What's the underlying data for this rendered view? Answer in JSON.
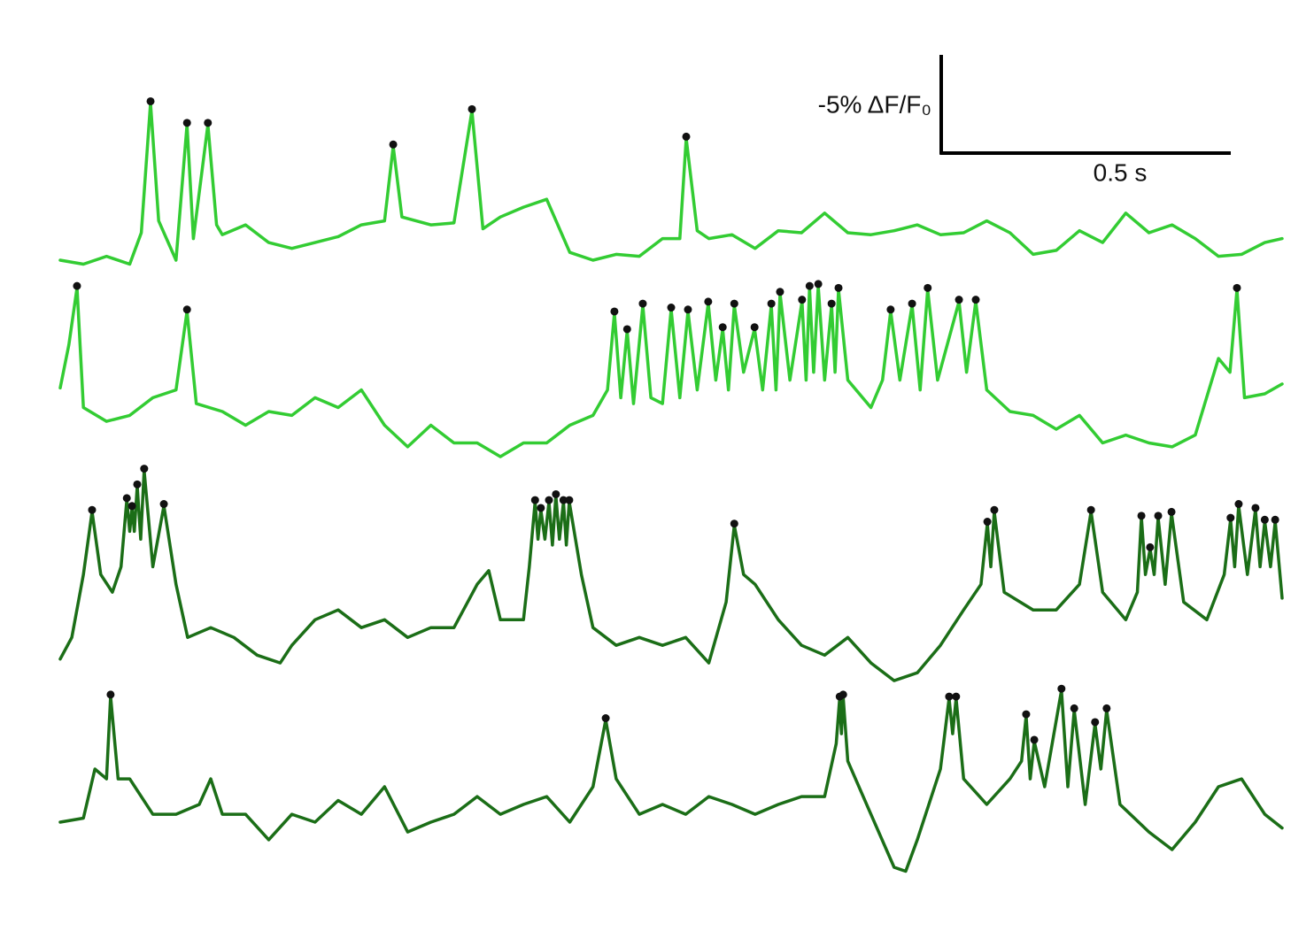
{
  "chart_data": {
    "type": "line",
    "xlim": [
      0,
      2.11
    ],
    "ylim": [
      0,
      45
    ],
    "scale_x": {
      "value": 0.5,
      "label": "0.5 s"
    },
    "scale_y": {
      "value": 5,
      "label": "-5% ΔF/F₀"
    },
    "peak_color": "#111111",
    "series": [
      {
        "color": "#33cc33",
        "x": [
          0,
          0.04,
          0.08,
          0.12,
          0.14,
          0.156,
          0.17,
          0.2,
          0.219,
          0.23,
          0.255,
          0.27,
          0.28,
          0.32,
          0.36,
          0.4,
          0.44,
          0.48,
          0.52,
          0.56,
          0.575,
          0.59,
          0.64,
          0.68,
          0.711,
          0.73,
          0.76,
          0.8,
          0.84,
          0.88,
          0.92,
          0.96,
          1.0,
          1.04,
          1.07,
          1.081,
          1.1,
          1.12,
          1.16,
          1.2,
          1.24,
          1.28,
          1.32,
          1.36,
          1.4,
          1.44,
          1.48,
          1.52,
          1.56,
          1.6,
          1.64,
          1.68,
          1.72,
          1.76,
          1.8,
          1.84,
          1.88,
          1.92,
          1.96,
          2.0,
          2.04,
          2.08,
          2.11
        ],
        "values": [
          31.8,
          31.6,
          32.0,
          31.6,
          33.2,
          39.8,
          33.8,
          31.8,
          38.7,
          32.9,
          38.7,
          33.6,
          33.1,
          33.6,
          32.7,
          32.4,
          32.7,
          33.0,
          33.6,
          33.8,
          37.6,
          34.0,
          33.6,
          33.7,
          39.4,
          33.4,
          34.0,
          34.5,
          34.9,
          32.2,
          31.8,
          32.1,
          32.0,
          32.9,
          32.9,
          38.0,
          33.3,
          32.9,
          33.1,
          32.4,
          33.3,
          33.2,
          34.2,
          33.2,
          33.1,
          33.3,
          33.6,
          33.1,
          33.2,
          33.8,
          33.2,
          32.1,
          32.3,
          33.3,
          32.7,
          34.2,
          33.2,
          33.6,
          32.9,
          32.0,
          32.1,
          32.7,
          32.9
        ],
        "peaks": {
          "x": [
            0.156,
            0.219,
            0.255,
            0.575,
            0.711,
            1.081
          ],
          "values": [
            39.8,
            38.7,
            38.7,
            37.6,
            39.4,
            38.0
          ]
        }
      },
      {
        "color": "#33cc33",
        "x": [
          0,
          0.015,
          0.029,
          0.04,
          0.08,
          0.12,
          0.16,
          0.2,
          0.219,
          0.235,
          0.28,
          0.32,
          0.36,
          0.4,
          0.44,
          0.48,
          0.52,
          0.56,
          0.6,
          0.64,
          0.68,
          0.72,
          0.76,
          0.8,
          0.84,
          0.88,
          0.92,
          0.945,
          0.957,
          0.968,
          0.979,
          0.99,
          1.006,
          1.02,
          1.04,
          1.055,
          1.07,
          1.084,
          1.1,
          1.119,
          1.132,
          1.144,
          1.154,
          1.164,
          1.18,
          1.199,
          1.213,
          1.228,
          1.236,
          1.243,
          1.26,
          1.281,
          1.288,
          1.294,
          1.301,
          1.309,
          1.32,
          1.332,
          1.338,
          1.344,
          1.36,
          1.4,
          1.42,
          1.434,
          1.45,
          1.471,
          1.485,
          1.498,
          1.515,
          1.552,
          1.565,
          1.581,
          1.6,
          1.64,
          1.68,
          1.72,
          1.76,
          1.8,
          1.84,
          1.88,
          1.92,
          1.96,
          2.0,
          2.02,
          2.032,
          2.045,
          2.08,
          2.11
        ],
        "values": [
          25.3,
          27.5,
          30.4,
          24.3,
          23.6,
          23.9,
          24.8,
          25.2,
          29.2,
          24.5,
          24.1,
          23.4,
          24.1,
          23.9,
          24.8,
          24.3,
          25.2,
          23.4,
          22.3,
          23.4,
          22.5,
          22.5,
          21.8,
          22.5,
          22.5,
          23.4,
          23.9,
          25.2,
          29.1,
          24.8,
          28.2,
          24.5,
          29.5,
          24.8,
          24.5,
          29.3,
          24.8,
          29.2,
          25.2,
          29.6,
          25.7,
          28.3,
          25.2,
          29.5,
          26.1,
          28.3,
          25.2,
          29.5,
          25.2,
          30.1,
          25.7,
          29.7,
          25.7,
          30.4,
          26.1,
          30.5,
          25.7,
          29.5,
          26.1,
          30.3,
          25.7,
          24.3,
          25.7,
          29.2,
          25.7,
          29.5,
          25.2,
          30.3,
          25.7,
          29.7,
          26.1,
          29.7,
          25.2,
          24.1,
          23.9,
          23.2,
          23.9,
          22.5,
          22.9,
          22.5,
          22.3,
          22.9,
          26.8,
          26.1,
          30.3,
          24.8,
          25.0,
          25.5
        ],
        "peaks": {
          "x": [
            0.029,
            0.219,
            0.957,
            0.979,
            1.006,
            1.055,
            1.084,
            1.119,
            1.144,
            1.164,
            1.199,
            1.228,
            1.243,
            1.281,
            1.294,
            1.309,
            1.332,
            1.344,
            1.434,
            1.471,
            1.498,
            1.552,
            1.581,
            2.032
          ],
          "values": [
            30.4,
            29.2,
            29.1,
            28.2,
            29.5,
            29.3,
            29.2,
            29.6,
            28.3,
            29.5,
            28.3,
            29.5,
            30.1,
            29.7,
            30.4,
            30.5,
            29.5,
            30.3,
            29.2,
            29.5,
            30.3,
            29.7,
            29.7,
            30.3
          ]
        }
      },
      {
        "color": "#1b6e17",
        "x": [
          0,
          0.02,
          0.04,
          0.055,
          0.07,
          0.09,
          0.105,
          0.115,
          0.12,
          0.124,
          0.128,
          0.133,
          0.139,
          0.145,
          0.16,
          0.179,
          0.2,
          0.22,
          0.26,
          0.3,
          0.34,
          0.38,
          0.4,
          0.44,
          0.48,
          0.52,
          0.56,
          0.6,
          0.64,
          0.68,
          0.72,
          0.74,
          0.76,
          0.8,
          0.81,
          0.82,
          0.825,
          0.83,
          0.837,
          0.844,
          0.85,
          0.856,
          0.862,
          0.869,
          0.874,
          0.879,
          0.9,
          0.92,
          0.96,
          1.0,
          1.04,
          1.08,
          1.12,
          1.15,
          1.164,
          1.18,
          1.2,
          1.24,
          1.28,
          1.32,
          1.36,
          1.4,
          1.44,
          1.48,
          1.52,
          1.56,
          1.59,
          1.601,
          1.607,
          1.613,
          1.63,
          1.68,
          1.72,
          1.76,
          1.78,
          1.8,
          1.84,
          1.86,
          1.867,
          1.874,
          1.882,
          1.889,
          1.896,
          1.908,
          1.919,
          1.94,
          1.98,
          2.01,
          2.021,
          2.028,
          2.035,
          2.05,
          2.064,
          2.072,
          2.08,
          2.09,
          2.098,
          2.11
        ],
        "values": [
          11.5,
          12.6,
          15.8,
          19.0,
          15.8,
          14.9,
          16.2,
          19.6,
          18.0,
          19.2,
          18.0,
          20.3,
          17.6,
          21.1,
          16.2,
          19.3,
          15.3,
          12.6,
          13.1,
          12.6,
          11.7,
          11.3,
          12.2,
          13.5,
          14.0,
          13.1,
          13.5,
          12.6,
          13.1,
          13.1,
          15.3,
          16.0,
          13.5,
          13.5,
          16.2,
          19.5,
          17.6,
          19.1,
          17.6,
          19.5,
          17.3,
          19.8,
          17.6,
          19.5,
          17.3,
          19.5,
          15.8,
          13.1,
          12.2,
          12.6,
          12.2,
          12.6,
          11.3,
          14.4,
          18.3,
          15.8,
          15.3,
          13.5,
          12.2,
          11.7,
          12.6,
          11.3,
          10.4,
          10.8,
          12.2,
          14.0,
          15.3,
          18.4,
          16.2,
          19.0,
          14.9,
          14.0,
          14.0,
          15.3,
          19.0,
          14.9,
          13.5,
          14.9,
          18.7,
          15.8,
          17.1,
          15.8,
          18.7,
          15.3,
          18.9,
          14.4,
          13.5,
          15.8,
          18.6,
          16.2,
          19.3,
          15.8,
          19.1,
          16.2,
          18.5,
          16.2,
          18.5,
          14.6
        ],
        "peaks": {
          "x": [
            0.055,
            0.115,
            0.124,
            0.133,
            0.145,
            0.179,
            0.82,
            0.83,
            0.844,
            0.856,
            0.869,
            0.879,
            1.164,
            1.601,
            1.613,
            1.78,
            1.867,
            1.882,
            1.896,
            1.919,
            2.021,
            2.035,
            2.064,
            2.08,
            2.098
          ],
          "values": [
            19.0,
            19.6,
            19.2,
            20.3,
            21.1,
            19.3,
            19.5,
            19.1,
            19.5,
            19.8,
            19.5,
            19.5,
            18.3,
            18.4,
            19.0,
            19.0,
            18.7,
            17.1,
            18.7,
            18.9,
            18.6,
            19.3,
            19.1,
            18.5,
            18.5
          ]
        }
      },
      {
        "color": "#1b6e17",
        "x": [
          0,
          0.04,
          0.06,
          0.08,
          0.087,
          0.1,
          0.12,
          0.16,
          0.2,
          0.24,
          0.26,
          0.28,
          0.32,
          0.36,
          0.4,
          0.44,
          0.48,
          0.52,
          0.56,
          0.6,
          0.64,
          0.68,
          0.72,
          0.76,
          0.8,
          0.84,
          0.88,
          0.92,
          0.942,
          0.96,
          1.0,
          1.04,
          1.08,
          1.12,
          1.16,
          1.2,
          1.24,
          1.28,
          1.32,
          1.34,
          1.346,
          1.349,
          1.352,
          1.36,
          1.4,
          1.44,
          1.46,
          1.48,
          1.52,
          1.535,
          1.541,
          1.547,
          1.56,
          1.6,
          1.64,
          1.66,
          1.668,
          1.675,
          1.682,
          1.7,
          1.729,
          1.74,
          1.751,
          1.77,
          1.787,
          1.797,
          1.807,
          1.83,
          1.88,
          1.92,
          1.96,
          2.0,
          2.04,
          2.08,
          2.11
        ],
        "values": [
          3.2,
          3.4,
          5.9,
          5.4,
          9.6,
          5.4,
          5.4,
          3.6,
          3.6,
          4.1,
          5.4,
          3.6,
          3.6,
          2.3,
          3.6,
          3.2,
          4.3,
          3.6,
          5.0,
          2.7,
          3.2,
          3.6,
          4.5,
          3.6,
          4.1,
          4.5,
          3.2,
          5.0,
          8.4,
          5.4,
          3.6,
          4.1,
          3.6,
          4.5,
          4.1,
          3.6,
          4.1,
          4.5,
          4.5,
          7.2,
          9.5,
          7.7,
          9.6,
          6.3,
          3.6,
          0.9,
          0.7,
          2.3,
          5.9,
          9.5,
          7.7,
          9.5,
          5.4,
          4.1,
          5.4,
          6.3,
          8.6,
          5.4,
          7.3,
          5.0,
          9.9,
          5.0,
          8.9,
          4.1,
          8.2,
          5.9,
          8.9,
          4.1,
          2.7,
          1.8,
          3.2,
          5.0,
          5.4,
          3.6,
          2.9
        ],
        "peaks": {
          "x": [
            0.087,
            0.942,
            1.346,
            1.352,
            1.535,
            1.547,
            1.668,
            1.682,
            1.729,
            1.751,
            1.787,
            1.807
          ],
          "values": [
            9.6,
            8.4,
            9.5,
            9.6,
            9.5,
            9.5,
            8.6,
            7.3,
            9.9,
            8.9,
            8.2,
            8.9
          ]
        }
      }
    ]
  }
}
